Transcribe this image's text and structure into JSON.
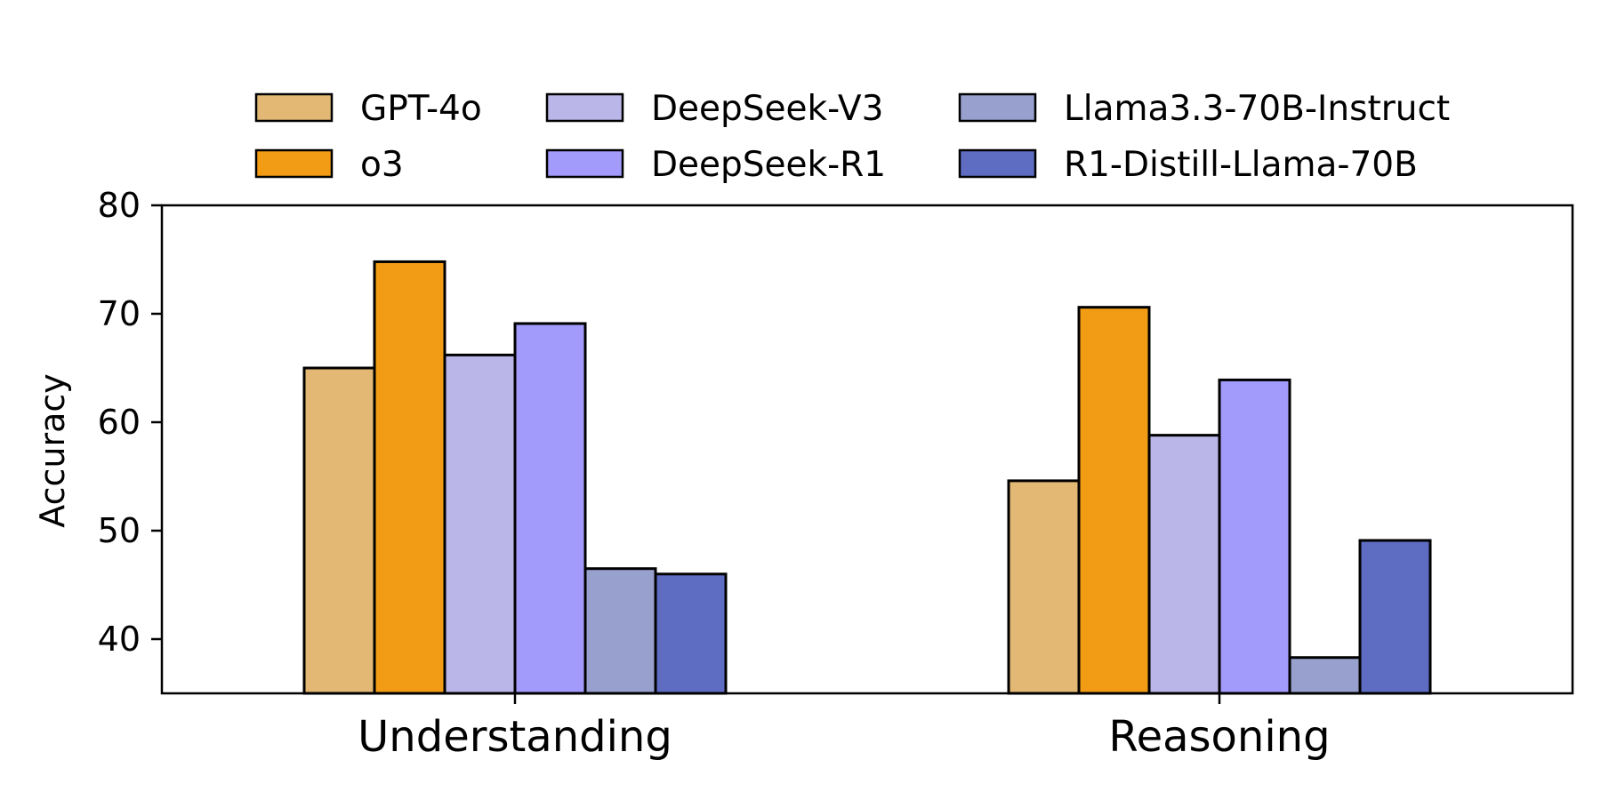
{
  "chart_data": {
    "type": "bar",
    "title": "",
    "xlabel": "",
    "ylabel": "Accuracy",
    "categories": [
      "Understanding",
      "Reasoning"
    ],
    "ylim": [
      35,
      80
    ],
    "yticks": [
      40,
      50,
      60,
      70,
      80
    ],
    "grid": false,
    "legend_position": "top-center",
    "series": [
      {
        "name": "GPT-4o",
        "color": "#E3B874",
        "values": [
          65.0,
          54.6
        ]
      },
      {
        "name": "o3",
        "color": "#F29C15",
        "values": [
          74.8,
          70.6
        ]
      },
      {
        "name": "DeepSeek-V3",
        "color": "#BAB6E8",
        "values": [
          66.2,
          58.8
        ]
      },
      {
        "name": "DeepSeek-R1",
        "color": "#A39BFC",
        "values": [
          69.1,
          63.9
        ]
      },
      {
        "name": "Llama3.3-70B-Instruct",
        "color": "#98A0CD",
        "values": [
          46.5,
          38.3
        ]
      },
      {
        "name": "R1-Distill-Llama-70B",
        "color": "#5E6CC2",
        "values": [
          46.0,
          49.1
        ]
      }
    ]
  }
}
